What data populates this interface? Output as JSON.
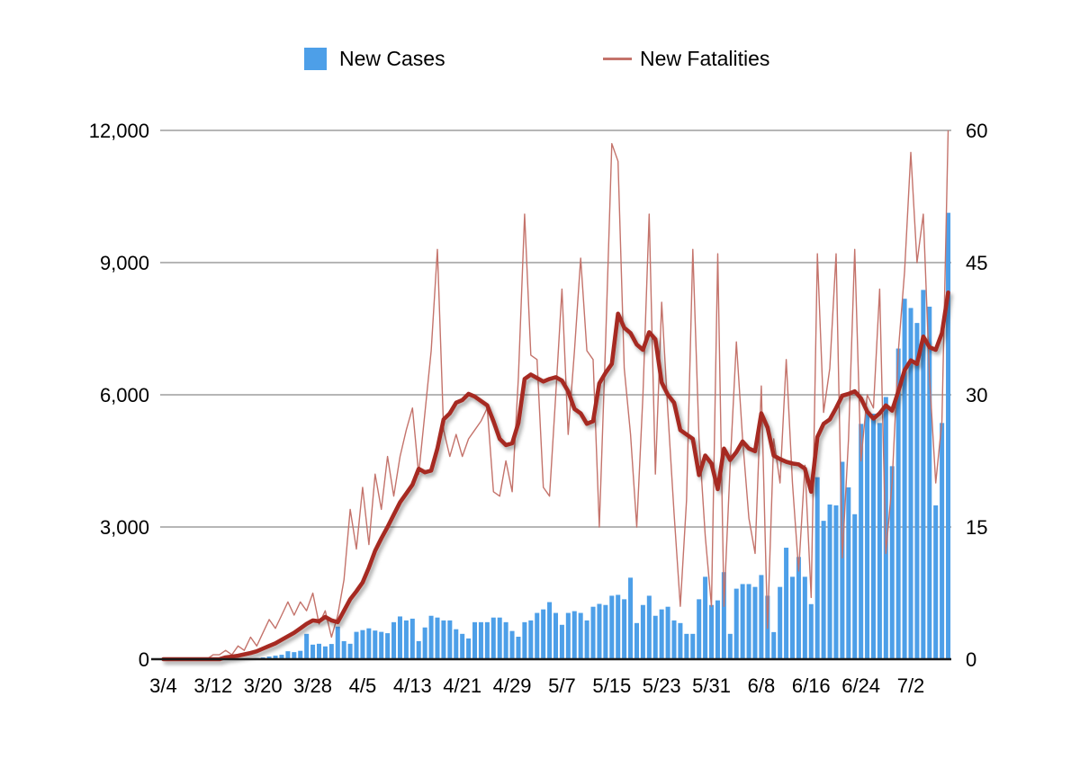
{
  "legend": {
    "cases_label": "New Cases",
    "fatalities_label": "New Fatalities"
  },
  "colors": {
    "bar_fill": "#4D9FE8",
    "thin_line": "#C4736B",
    "thick_line": "#A62C21",
    "gridline": "#ABABAB",
    "baseline": "#1A1A1A",
    "text": "#000000"
  },
  "axes": {
    "left_tick_labels": [
      "12,000",
      "9,000",
      "6,000",
      "3,000",
      "0"
    ],
    "left_tick_values": [
      12000,
      9000,
      6000,
      3000,
      0
    ],
    "right_tick_labels": [
      "60",
      "45",
      "30",
      "15",
      "0"
    ],
    "right_tick_values": [
      60,
      45,
      30,
      15,
      0
    ],
    "x_tick_labels": [
      "3/4",
      "3/12",
      "3/20",
      "3/28",
      "4/5",
      "4/13",
      "4/21",
      "4/29",
      "5/7",
      "5/15",
      "5/23",
      "5/31",
      "6/8",
      "6/16",
      "6/24",
      "7/2"
    ],
    "x_tick_day_indices": [
      0,
      8,
      16,
      24,
      32,
      40,
      48,
      56,
      64,
      72,
      80,
      88,
      96,
      104,
      112,
      120
    ]
  },
  "chart_data": {
    "type": "bar",
    "title": "",
    "xlabel": "",
    "ylabel_left": "",
    "ylabel_right": "",
    "ylim_left": [
      0,
      12000
    ],
    "ylim_right": [
      0,
      60
    ],
    "grid": true,
    "legend_position": "top",
    "x": [
      "3/4",
      "3/5",
      "3/6",
      "3/7",
      "3/8",
      "3/9",
      "3/10",
      "3/11",
      "3/12",
      "3/13",
      "3/14",
      "3/15",
      "3/16",
      "3/17",
      "3/18",
      "3/19",
      "3/20",
      "3/21",
      "3/22",
      "3/23",
      "3/24",
      "3/25",
      "3/26",
      "3/27",
      "3/28",
      "3/29",
      "3/30",
      "3/31",
      "4/1",
      "4/2",
      "4/3",
      "4/4",
      "4/5",
      "4/6",
      "4/7",
      "4/8",
      "4/9",
      "4/10",
      "4/11",
      "4/12",
      "4/13",
      "4/14",
      "4/15",
      "4/16",
      "4/17",
      "4/18",
      "4/19",
      "4/20",
      "4/21",
      "4/22",
      "4/23",
      "4/24",
      "4/25",
      "4/26",
      "4/27",
      "4/28",
      "4/29",
      "4/30",
      "5/1",
      "5/2",
      "5/3",
      "5/4",
      "5/5",
      "5/6",
      "5/7",
      "5/8",
      "5/9",
      "5/10",
      "5/11",
      "5/12",
      "5/13",
      "5/14",
      "5/15",
      "5/16",
      "5/17",
      "5/18",
      "5/19",
      "5/20",
      "5/21",
      "5/22",
      "5/23",
      "5/24",
      "5/25",
      "5/26",
      "5/27",
      "5/28",
      "5/29",
      "5/30",
      "5/31",
      "6/1",
      "6/2",
      "6/3",
      "6/4",
      "6/5",
      "6/6",
      "6/7",
      "6/8",
      "6/9",
      "6/10",
      "6/11",
      "6/12",
      "6/13",
      "6/14",
      "6/15",
      "6/16",
      "6/17",
      "6/18",
      "6/19",
      "6/20",
      "6/21",
      "6/22",
      "6/23",
      "6/24",
      "6/25",
      "6/26",
      "6/27",
      "6/28",
      "6/29",
      "6/30",
      "7/1",
      "7/2",
      "7/3",
      "7/4",
      "7/5",
      "7/6",
      "7/7",
      "7/8"
    ],
    "series": [
      {
        "name": "New Cases",
        "type": "bar",
        "axis": "left",
        "values": [
          0,
          0,
          0,
          0,
          0,
          0,
          0,
          0,
          0,
          5,
          8,
          10,
          12,
          15,
          18,
          25,
          40,
          60,
          80,
          100,
          180,
          160,
          190,
          575,
          330,
          350,
          290,
          345,
          740,
          410,
          350,
          620,
          660,
          700,
          650,
          620,
          590,
          840,
          970,
          880,
          920,
          410,
          720,
          985,
          945,
          880,
          880,
          680,
          575,
          470,
          840,
          840,
          840,
          945,
          945,
          840,
          640,
          510,
          840,
          880,
          1050,
          1130,
          1295,
          1050,
          780,
          1050,
          1090,
          1050,
          880,
          1190,
          1255,
          1230,
          1440,
          1460,
          1360,
          1850,
          820,
          1230,
          1440,
          985,
          1130,
          1190,
          880,
          820,
          575,
          575,
          1360,
          1870,
          1230,
          1335,
          1975,
          575,
          1600,
          1705,
          1705,
          1640,
          1910,
          1440,
          615,
          1640,
          2530,
          1870,
          2320,
          1870,
          1250,
          4130,
          3140,
          3510,
          3490,
          4480,
          3900,
          3290,
          5340,
          5610,
          5570,
          5360,
          5950,
          4380,
          7050,
          8180,
          7970,
          7630,
          8380,
          8000,
          3490,
          5360,
          10130
        ]
      },
      {
        "name": "New Fatalities",
        "type": "line",
        "axis": "right",
        "values": [
          0,
          0,
          0,
          0,
          0,
          0,
          0,
          0,
          0.5,
          0.5,
          1,
          0.5,
          1.5,
          1,
          2.5,
          1.5,
          3,
          4.5,
          3.5,
          5,
          6.5,
          5,
          6.5,
          5.5,
          7.5,
          4,
          5.5,
          2.5,
          5,
          9,
          17,
          12.5,
          19.5,
          13,
          21,
          17,
          23,
          18.5,
          23,
          26,
          28.5,
          21,
          28,
          35,
          46.5,
          26,
          23,
          25.5,
          23,
          25,
          26,
          27,
          28.5,
          19,
          18.5,
          22.5,
          19,
          32,
          50.5,
          34.5,
          34,
          19.5,
          18.5,
          30,
          42,
          25.5,
          35,
          45.5,
          35,
          34,
          15,
          36,
          58.5,
          56.5,
          33,
          25.5,
          15,
          30,
          50.5,
          21,
          40.5,
          28,
          16.5,
          6,
          18,
          46.5,
          25,
          14,
          6,
          46,
          6,
          22,
          36,
          25,
          16,
          12,
          31,
          3.5,
          25,
          20,
          34,
          20,
          10,
          22,
          7,
          46,
          28,
          33,
          46,
          11.5,
          25,
          46.5,
          22.5,
          30,
          28.5,
          42,
          12,
          20,
          35,
          44,
          57.5,
          45,
          50.5,
          32,
          20,
          27,
          60
        ]
      },
      {
        "name": "New Fatalities (7-day trend)",
        "type": "line-thick",
        "axis": "right",
        "values": [
          0,
          0,
          0,
          0,
          0,
          0,
          0,
          0,
          0,
          0,
          0.2,
          0.3,
          0.4,
          0.55,
          0.7,
          0.9,
          1.2,
          1.5,
          1.8,
          2.2,
          2.6,
          3,
          3.5,
          4,
          4.4,
          4.3,
          4.8,
          4.4,
          4.2,
          5.5,
          6.8,
          7.7,
          8.7,
          10.4,
          12.3,
          13.7,
          15,
          16.4,
          17.8,
          18.8,
          19.8,
          21.6,
          21.2,
          21.4,
          23.9,
          27.2,
          27.9,
          29.1,
          29.4,
          30.1,
          29.8,
          29.3,
          28.8,
          27,
          25,
          24.3,
          24.5,
          26.8,
          31.8,
          32.3,
          31.9,
          31.5,
          31.8,
          32,
          31.6,
          30.4,
          28.4,
          27.9,
          26.7,
          27,
          31.3,
          32.5,
          33.5,
          39.2,
          37.6,
          37,
          35.7,
          35.1,
          37.1,
          36.3,
          31.4,
          30,
          29.1,
          26,
          25.5,
          25,
          20.9,
          23.1,
          22.2,
          19.3,
          23.9,
          22.6,
          23.5,
          24.7,
          23.9,
          23.6,
          27.9,
          26.3,
          23.1,
          22.7,
          22.4,
          22.2,
          22.1,
          21.6,
          19,
          25.2,
          26.7,
          27.2,
          28.5,
          29.9,
          30.1,
          30.4,
          29.6,
          28.1,
          27.3,
          27.9,
          28.8,
          28.2,
          30.4,
          32.8,
          33.9,
          33.5,
          36.6,
          35.4,
          35.1,
          37,
          41.6
        ]
      }
    ]
  }
}
